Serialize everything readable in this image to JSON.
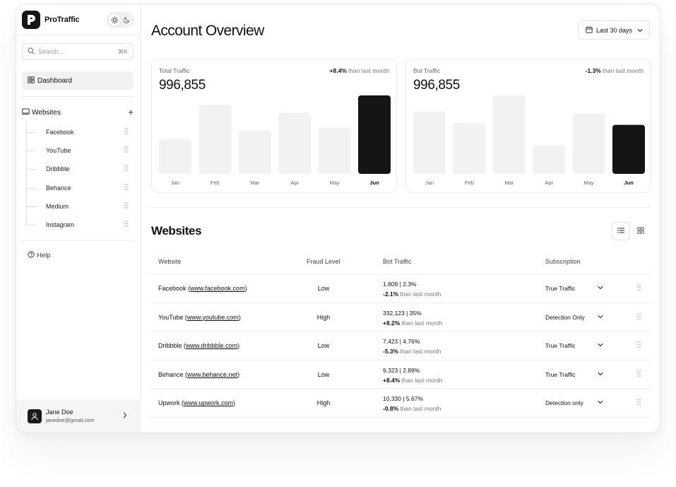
{
  "app": {
    "name": "ProTraffic"
  },
  "sidebar": {
    "search": {
      "placeholder": "Search...",
      "shortcut": "⌘K"
    },
    "dashboard_label": "Dashboard",
    "websites_label": "Websites",
    "websites": [
      {
        "label": "Facebook"
      },
      {
        "label": "YouTube"
      },
      {
        "label": "Dribbble"
      },
      {
        "label": "Behance"
      },
      {
        "label": "Medium"
      },
      {
        "label": "Instagram"
      }
    ],
    "help_label": "Help",
    "user": {
      "name": "Jane Doe",
      "email": "janedoe@gmail.com"
    }
  },
  "header": {
    "title": "Account Overview",
    "date_range": "Last 30 days"
  },
  "cards": [
    {
      "label": "Total Traffic",
      "value": "996,855",
      "delta": "+8.4%",
      "delta_suffix": "than last month"
    },
    {
      "label": "Bot Traffic",
      "value": "996,855",
      "delta": "-1.3%",
      "delta_suffix": "than last month"
    }
  ],
  "chart_data": [
    {
      "type": "bar",
      "categories": [
        "Jan",
        "Feb",
        "Mar",
        "Apr",
        "May",
        "Jun"
      ],
      "values": [
        44,
        88,
        55,
        78,
        59,
        100
      ],
      "highlight_index": 5,
      "colors": {
        "bar": "#f2f2f2",
        "highlight": "#151515"
      }
    },
    {
      "type": "bar",
      "categories": [
        "Jan",
        "Feb",
        "Mar",
        "Apr",
        "May",
        "Jun"
      ],
      "values": [
        70,
        57,
        88,
        32,
        68,
        55
      ],
      "highlight_index": 5,
      "colors": {
        "bar": "#f2f2f2",
        "highlight": "#151515"
      }
    }
  ],
  "websites_section": {
    "title": "Websites",
    "columns": [
      "Website",
      "Fraud Level",
      "Bot Traffic",
      "Subscription"
    ],
    "rows": [
      {
        "name": "Facebook",
        "url": "www.facebook.com",
        "fraud": "Low",
        "bot": "1,809 | 2.3%",
        "delta": "-2.1%",
        "delta_suffix": "than last month",
        "subscription": "True Traffic"
      },
      {
        "name": "YouTube",
        "url": "www.youtube.com",
        "fraud": "High",
        "bot": "332,123 | 35%",
        "delta": "+8.2%",
        "delta_suffix": "than last month",
        "subscription": "Detection Only"
      },
      {
        "name": "Dribbble",
        "url": "www.dribbble.com",
        "fraud": "Low",
        "bot": "7,423 | 4.76%",
        "delta": "-5.3%",
        "delta_suffix": "than last month",
        "subscription": "True Traffic"
      },
      {
        "name": "Behance",
        "url": "www.behance.net",
        "fraud": "Low",
        "bot": "9,323 | 2.89%",
        "delta": "+8.4%",
        "delta_suffix": "than last month",
        "subscription": "True Traffic"
      },
      {
        "name": "Upwork",
        "url": "www.upwork.com",
        "fraud": "High",
        "bot": "10,330 | 5.67%",
        "delta": "-0.8%",
        "delta_suffix": "than last month",
        "subscription": "Detection only"
      }
    ]
  },
  "icons": {
    "logo": "protraffic-logo-icon",
    "theme_light": "sun-icon",
    "theme_dark": "moon-icon",
    "search": "search-icon",
    "dashboard": "grid-icon",
    "websites": "monitor-icon",
    "add": "plus-icon",
    "drag": "grip-icon",
    "help": "help-circle-icon",
    "calendar": "calendar-icon",
    "list_view": "list-icon",
    "grid_view": "grid-icon",
    "chevron": "chevron-down-icon"
  }
}
